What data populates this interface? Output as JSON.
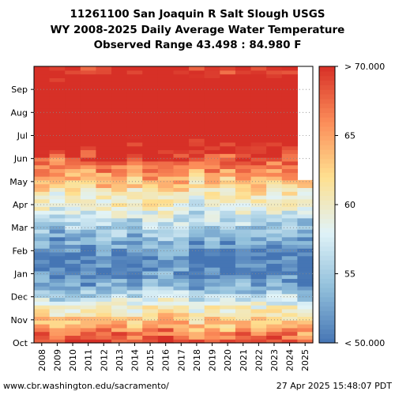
{
  "title_lines": [
    "11261100 San Joaquin R Salt Slough USGS",
    "WY 2008-2025 Daily Average Water Temperature",
    "Observed Range 43.498 : 84.980 F"
  ],
  "footer": {
    "source": "www.cbr.washington.edu/sacramento/",
    "timestamp": "27 Apr 2025 15:48:07 PDT"
  },
  "chart_data": {
    "type": "heatmap",
    "title": "WY 2008-2025 Daily Average Water Temperature",
    "x_categories": [
      "2008",
      "2009",
      "2010",
      "2011",
      "2012",
      "2013",
      "2014",
      "2015",
      "2016",
      "2017",
      "2018",
      "2019",
      "2020",
      "2021",
      "2022",
      "2023",
      "2024",
      "2025"
    ],
    "y_month_ticks": [
      "Oct",
      "Nov",
      "Dec",
      "Jan",
      "Feb",
      "Mar",
      "Apr",
      "May",
      "Jun",
      "Jul",
      "Aug",
      "Sep"
    ],
    "y_axis_order": "Oct at bottom, Sep at top",
    "colorbar": {
      "range": [
        50,
        70
      ],
      "ticks": [
        "< 50.000",
        "55",
        "60",
        "65",
        "> 70.000"
      ],
      "colors": [
        "#4575b4",
        "#91bfdb",
        "#e0f3f8",
        "#fee090",
        "#fc8d59",
        "#d73027"
      ]
    },
    "observed_range": [
      43.498,
      84.98
    ],
    "monthly_typical_values": {
      "columns": [
        "Oct",
        "Nov",
        "Dec",
        "Jan",
        "Feb",
        "Mar",
        "Apr",
        "May",
        "Jun",
        "Jul",
        "Aug",
        "Sep"
      ],
      "approx_temp_F": [
        66,
        60,
        53,
        50,
        53,
        57,
        61,
        66,
        71,
        75,
        75,
        72
      ]
    },
    "year_2025_last_data_month": "Apr",
    "grid": true
  }
}
